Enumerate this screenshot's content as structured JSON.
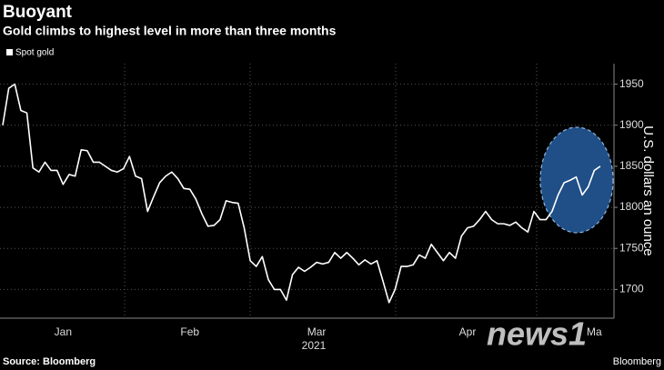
{
  "chart_data": {
    "type": "line",
    "title": "Buoyant",
    "subtitle": "Gold climbs to highest level in more than three months",
    "y_axis_label": "U.S. dollars an ounce",
    "x_axis_year": "2021",
    "source": "Source: Bloomberg",
    "brand": "Bloomberg",
    "watermark": "news1",
    "categories": [
      null,
      null,
      null,
      null,
      null,
      null,
      null,
      null,
      null,
      null,
      "Jan",
      null,
      null,
      null,
      null,
      null,
      null,
      null,
      null,
      null,
      null,
      null,
      null,
      null,
      null,
      null,
      null,
      null,
      null,
      null,
      null,
      "Feb",
      null,
      null,
      null,
      null,
      null,
      null,
      null,
      null,
      null,
      null,
      null,
      null,
      null,
      null,
      null,
      null,
      null,
      null,
      null,
      null,
      "Mar",
      null,
      null,
      null,
      null,
      null,
      null,
      null,
      null,
      null,
      null,
      null,
      null,
      null,
      null,
      null,
      null,
      null,
      null,
      null,
      null,
      null,
      null,
      null,
      null,
      "Apr",
      null,
      null,
      null,
      null,
      null,
      null,
      null,
      null,
      null,
      null,
      null,
      null,
      null,
      null,
      null,
      null,
      null,
      null,
      null,
      null,
      "Ma",
      null
    ],
    "series": [
      {
        "name": "Spot gold",
        "color": "#ffffff",
        "values": [
          1900,
          1945,
          1950,
          1918,
          1915,
          1848,
          1843,
          1855,
          1845,
          1845,
          1828,
          1840,
          1838,
          1870,
          1869,
          1855,
          1855,
          1850,
          1845,
          1843,
          1847,
          1862,
          1838,
          1835,
          1795,
          1813,
          1830,
          1838,
          1843,
          1835,
          1823,
          1822,
          1810,
          1792,
          1777,
          1778,
          1785,
          1808,
          1806,
          1805,
          1775,
          1735,
          1728,
          1740,
          1712,
          1700,
          1700,
          1687,
          1718,
          1727,
          1722,
          1727,
          1733,
          1731,
          1733,
          1745,
          1738,
          1745,
          1738,
          1730,
          1736,
          1731,
          1735,
          1710,
          1684,
          1700,
          1728,
          1728,
          1730,
          1742,
          1738,
          1755,
          1745,
          1735,
          1745,
          1738,
          1765,
          1775,
          1777,
          1785,
          1795,
          1785,
          1780,
          1780,
          1778,
          1782,
          1775,
          1770,
          1795,
          1785,
          1785,
          1795,
          1815,
          1830,
          1833,
          1837,
          1815,
          1825,
          1845,
          1850
        ]
      }
    ],
    "ylim": [
      1665,
      1975
    ],
    "yticks": [
      1700,
      1750,
      1800,
      1850,
      1900,
      1950
    ],
    "grid": true
  }
}
